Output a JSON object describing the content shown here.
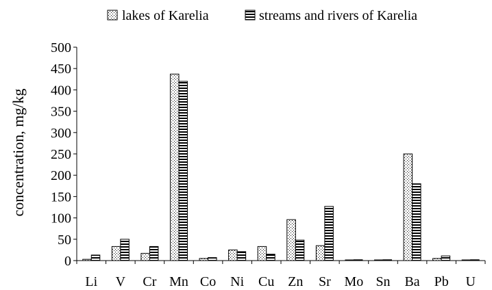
{
  "chart_data": {
    "type": "bar",
    "ylabel": "concentration, mg/kg",
    "xlabel": "",
    "ylim": [
      0,
      500
    ],
    "yticks": [
      0,
      50,
      100,
      150,
      200,
      250,
      300,
      350,
      400,
      450,
      500
    ],
    "grid": false,
    "legend_position": "top",
    "categories": [
      "Li",
      "V",
      "Cr",
      "Mn",
      "Co",
      "Ni",
      "Cu",
      "Zn",
      "Sr",
      "Mo",
      "Sn",
      "Ba",
      "Pb",
      "U"
    ],
    "series": [
      {
        "name": "lakes of Karelia",
        "pattern": "dots",
        "values": [
          3,
          33,
          17,
          437,
          5,
          25,
          33,
          96,
          35,
          1,
          1,
          250,
          5,
          1
        ]
      },
      {
        "name": "streams and rivers of Karelia",
        "pattern": "horizontal-stripes",
        "values": [
          13,
          50,
          33,
          420,
          7,
          21,
          15,
          48,
          127,
          2,
          2,
          180,
          11,
          2
        ]
      }
    ]
  }
}
